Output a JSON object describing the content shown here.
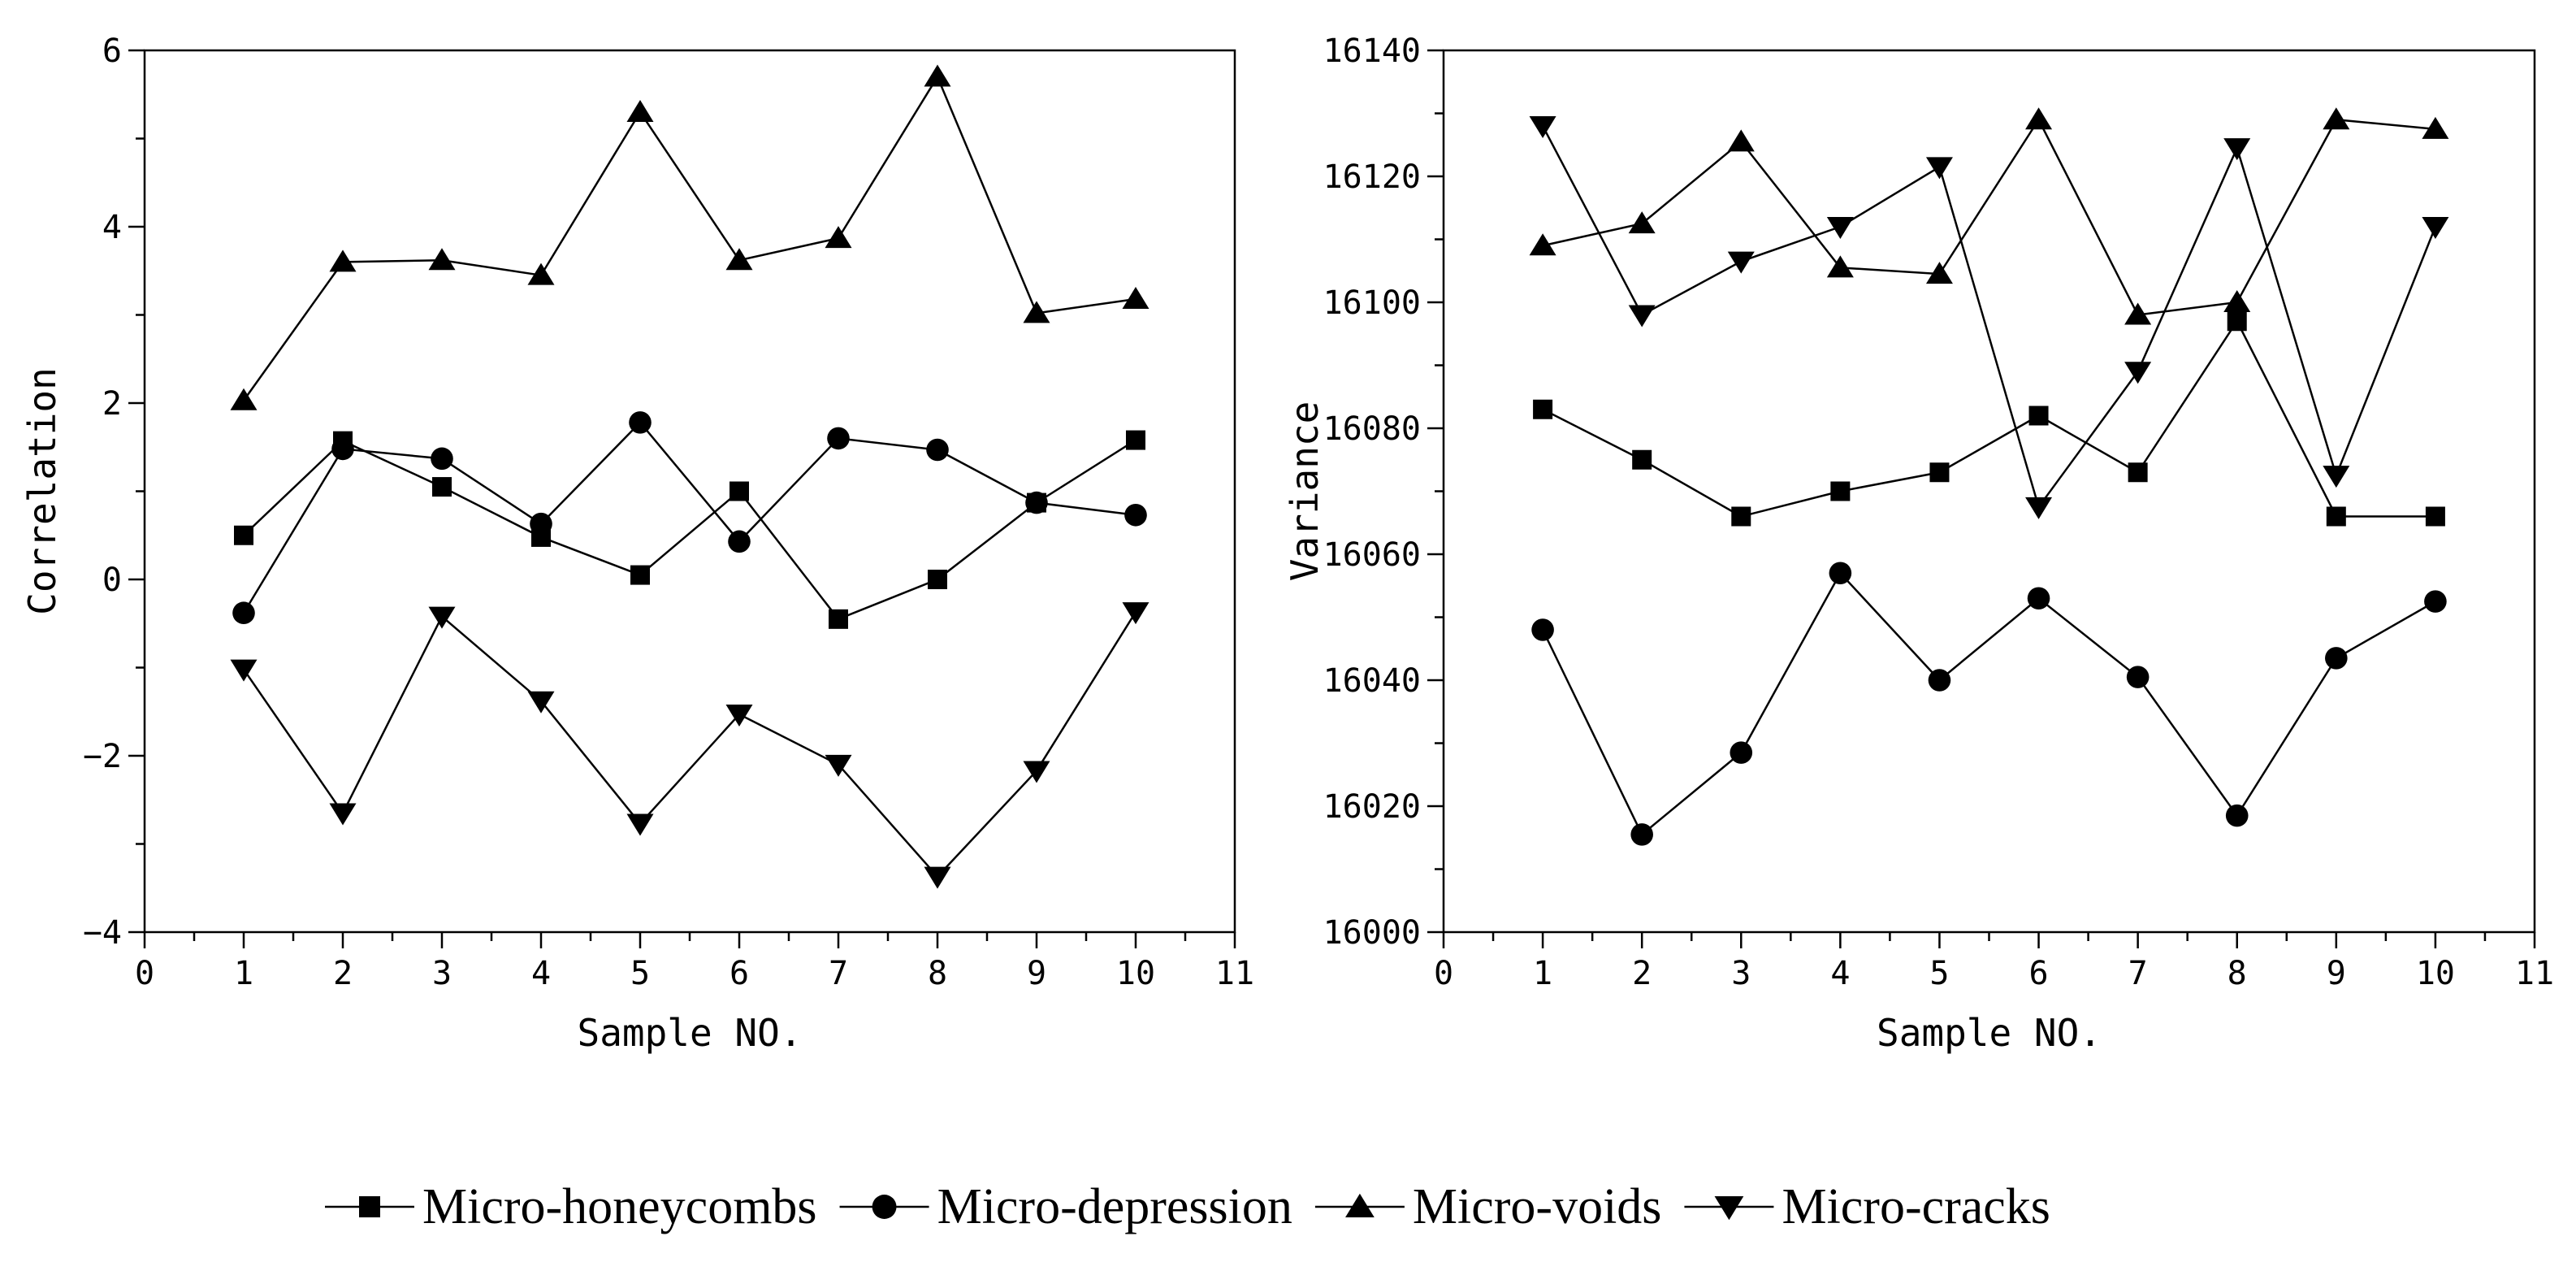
{
  "chart_data": [
    {
      "type": "line",
      "xlabel": "Sample NO.",
      "ylabel": "Correlation",
      "xlim": [
        0,
        11
      ],
      "ylim": [
        -4,
        6
      ],
      "xticks": [
        0,
        1,
        2,
        3,
        4,
        5,
        6,
        7,
        8,
        9,
        10,
        11
      ],
      "yticks": [
        -4,
        -2,
        0,
        2,
        4,
        6
      ],
      "x": [
        1,
        2,
        3,
        4,
        5,
        6,
        7,
        8,
        9,
        10
      ],
      "series": [
        {
          "name": "Micro-honeycombs",
          "marker": "square",
          "values": [
            0.5,
            1.57,
            1.05,
            0.48,
            0.05,
            1.0,
            -0.45,
            0.0,
            0.87,
            1.58
          ]
        },
        {
          "name": "Micro-depression",
          "marker": "circle",
          "values": [
            -0.38,
            1.48,
            1.37,
            0.63,
            1.78,
            0.43,
            1.6,
            1.47,
            0.87,
            0.73
          ]
        },
        {
          "name": "Micro-voids",
          "marker": "triangle-up",
          "values": [
            2.03,
            3.6,
            3.62,
            3.45,
            5.3,
            3.62,
            3.87,
            5.7,
            3.02,
            3.18
          ]
        },
        {
          "name": "Micro-cracks",
          "marker": "triangle-down",
          "values": [
            -1.02,
            -2.65,
            -0.42,
            -1.38,
            -2.77,
            -1.53,
            -2.1,
            -3.37,
            -2.17,
            -0.37
          ]
        }
      ]
    },
    {
      "type": "line",
      "xlabel": "Sample NO.",
      "ylabel": "Variance",
      "xlim": [
        0,
        11
      ],
      "ylim": [
        16000,
        16140
      ],
      "xticks": [
        0,
        1,
        2,
        3,
        4,
        5,
        6,
        7,
        8,
        9,
        10,
        11
      ],
      "yticks": [
        16000,
        16020,
        16040,
        16060,
        16080,
        16100,
        16120,
        16140
      ],
      "x": [
        1,
        2,
        3,
        4,
        5,
        6,
        7,
        8,
        9,
        10
      ],
      "series": [
        {
          "name": "Micro-honeycombs",
          "marker": "square",
          "values": [
            16083,
            16075,
            16066,
            16070,
            16073,
            16082,
            16073,
            16097,
            16066,
            16066
          ]
        },
        {
          "name": "Micro-depression",
          "marker": "circle",
          "values": [
            16048,
            16015.5,
            16028.5,
            16057,
            16040,
            16053,
            16040.5,
            16018.5,
            16043.5,
            16052.5
          ]
        },
        {
          "name": "Micro-voids",
          "marker": "triangle-up",
          "values": [
            16109,
            16112.5,
            16125.5,
            16105.5,
            16104.5,
            16129,
            16098,
            16100,
            16129,
            16127.5
          ]
        },
        {
          "name": "Micro-cracks",
          "marker": "triangle-down",
          "values": [
            16128,
            16098,
            16106.5,
            16112,
            16121.5,
            16067.5,
            16089,
            16124.5,
            16072.5,
            16112
          ]
        }
      ]
    }
  ],
  "legend": {
    "placement": "bottom",
    "items": [
      {
        "label": "Micro-honeycombs",
        "marker": "square"
      },
      {
        "label": "Micro-depression",
        "marker": "circle"
      },
      {
        "label": "Micro-voids",
        "marker": "triangle-up"
      },
      {
        "label": "Micro-cracks",
        "marker": "triangle-down"
      }
    ]
  },
  "colors": {
    "ink": "#000000",
    "background": "#ffffff"
  }
}
